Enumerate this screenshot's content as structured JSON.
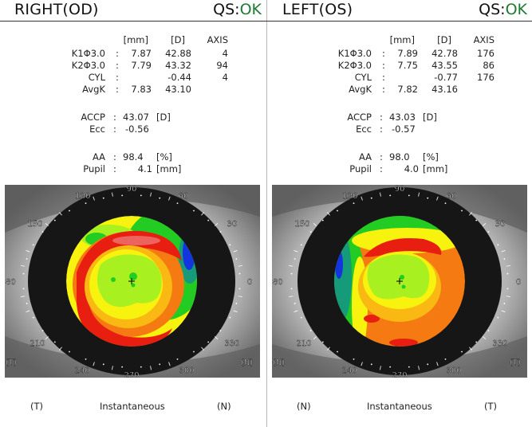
{
  "od": {
    "title": "RIGHT(OD)",
    "qs_label": "QS:",
    "qs_value": "OK",
    "columns": [
      "[mm]",
      "[D]",
      "AXIS"
    ],
    "rows": [
      {
        "label": "K1Φ3.0",
        "sep": ":",
        "mm": "7.87",
        "d": "42.88",
        "axis": "4"
      },
      {
        "label": "K2Φ3.0",
        "sep": ":",
        "mm": "7.79",
        "d": "43.32",
        "axis": "94"
      },
      {
        "label": "CYL",
        "sep": ":",
        "mm": "",
        "d": "-0.44",
        "axis": "4"
      },
      {
        "label": "AvgK",
        "sep": ":",
        "mm": "7.83",
        "d": "43.10",
        "axis": ""
      }
    ],
    "accp": {
      "label": "ACCP",
      "sep": ":",
      "value": "43.07",
      "unit": "[D]"
    },
    "ecc": {
      "label": "Ecc",
      "sep": ":",
      "value": "-0.56"
    },
    "aa": {
      "label": "AA",
      "sep": ":",
      "value": "98.4",
      "unit": "[%]"
    },
    "pupil": {
      "label": "Pupil",
      "sep": ":",
      "value": "4.1",
      "unit": "[mm]"
    },
    "map": {
      "angles": {
        "a90": "90",
        "a120": "120",
        "a60": "60",
        "a150": "150",
        "a30": "30",
        "a180": "80",
        "a0": "0",
        "a210": "210",
        "a330": "330",
        "a240": "240",
        "a300": "300",
        "a270": "270"
      },
      "left_side": "(T)",
      "right_side": "(N)"
    },
    "footer": {
      "left": "(T)",
      "center": "Instantaneous",
      "right": "(N)"
    }
  },
  "os": {
    "title": "LEFT(OS)",
    "qs_label": "QS:",
    "qs_value": "OK",
    "columns": [
      "[mm]",
      "[D]",
      "AXIS"
    ],
    "rows": [
      {
        "label": "K1Φ3.0",
        "sep": ":",
        "mm": "7.89",
        "d": "42.78",
        "axis": "176"
      },
      {
        "label": "K2Φ3.0",
        "sep": ":",
        "mm": "7.75",
        "d": "43.55",
        "axis": "86"
      },
      {
        "label": "CYL",
        "sep": ":",
        "mm": "",
        "d": "-0.77",
        "axis": "176"
      },
      {
        "label": "AvgK",
        "sep": ":",
        "mm": "7.82",
        "d": "43.16",
        "axis": ""
      }
    ],
    "accp": {
      "label": "ACCP",
      "sep": ":",
      "value": "43.03",
      "unit": "[D]"
    },
    "ecc": {
      "label": "Ecc",
      "sep": ":",
      "value": "-0.57"
    },
    "aa": {
      "label": "AA",
      "sep": ":",
      "value": "98.0",
      "unit": "[%]"
    },
    "pupil": {
      "label": "Pupil",
      "sep": ":",
      "value": "4.0",
      "unit": "[mm]"
    },
    "map": {
      "angles": {
        "a90": "90",
        "a120": "120",
        "a60": "60",
        "a150": "150",
        "a30": "30",
        "a180": "80",
        "a0": "0",
        "a210": "210",
        "a330": "330",
        "a240": "240",
        "a300": "300",
        "a270": "270"
      },
      "left_side": "(N)",
      "right_side": "(T)"
    },
    "footer": {
      "left": "(N)",
      "center": "Instantaneous",
      "right": "(T)"
    }
  },
  "colors": {
    "ok": "#1e7a33",
    "red": "#e81e10",
    "orange": "#f57a12",
    "yellow": "#f7f20e",
    "lime": "#a8f020",
    "green": "#22cc22",
    "teal": "#159a7a",
    "blue": "#1434e0"
  }
}
